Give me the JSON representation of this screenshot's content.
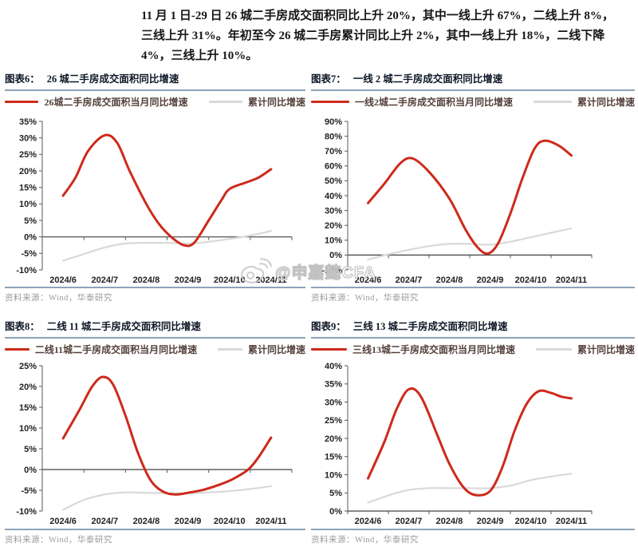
{
  "summary": {
    "lines": [
      "11 月 1 日-29 日 26 城二手房成交面积同比上升 20%，其中一线上升 67%，二线上升 8%，",
      "三线上升 31%。年初至今 26 城二手房累计同比上升 2%，其中一线上升 18%，二线下降",
      "4%，三线上升 10%。"
    ]
  },
  "watermark": {
    "icon": "weibo-icon",
    "text": "@申嘉懿CFA"
  },
  "colors": {
    "monthly_red": "#cd2a1c",
    "cumulative_gray": "#d9d9d9",
    "rule_blue": "#8ca4ba",
    "axis_gray": "#595959",
    "zero_line": "#404040"
  },
  "chart_data": [
    {
      "type": "line",
      "figure_label": "图表6：",
      "title": "26 城二手房成交面积同比增速",
      "source": "资料来源：Wind，华泰研究",
      "x_labels": [
        "2024/6",
        "2024/7",
        "2024/8",
        "2024/9",
        "2024/10",
        "2024/11"
      ],
      "ylim": [
        -10,
        35
      ],
      "ytick_step": 5,
      "y_tick_labels": [
        "-10%",
        "-5%",
        "0%",
        "5%",
        "10%",
        "15%",
        "20%",
        "25%",
        "30%",
        "35%"
      ],
      "legend_position": "top",
      "grid": false,
      "series": [
        {
          "name": "26城二手房成交面积当月同比增速",
          "color": "#cd2a1c",
          "width": 3,
          "x": [
            6,
            6.3,
            6.6,
            7,
            7.3,
            7.6,
            8,
            8.3,
            8.6,
            8.9,
            9.15,
            9.5,
            9.8,
            10,
            10.4,
            10.7,
            11
          ],
          "y": [
            12.5,
            18,
            26,
            30.8,
            28.5,
            20,
            10,
            4,
            0,
            -2.5,
            -1.8,
            5,
            11,
            14.5,
            16.5,
            18,
            20.5
          ]
        },
        {
          "name": "累计同比增速",
          "color": "#d9d9d9",
          "width": 2.2,
          "x": [
            6,
            6.5,
            7,
            7.5,
            8,
            8.5,
            9,
            9.5,
            10,
            10.5,
            11
          ],
          "y": [
            -7.2,
            -5.2,
            -3.2,
            -2,
            -1.8,
            -1.8,
            -2,
            -1.5,
            -0.6,
            0.4,
            1.8
          ]
        }
      ]
    },
    {
      "type": "line",
      "figure_label": "图表7：",
      "title": "一线 2 城二手房成交面积同比增速",
      "source": "资料来源：Wind，华泰研究",
      "x_labels": [
        "2024/6",
        "2024/7",
        "2024/8",
        "2024/9",
        "2024/10",
        "2024/11"
      ],
      "ylim": [
        -10,
        90
      ],
      "ytick_step": 10,
      "y_tick_labels": [
        "-10%",
        "0%",
        "10%",
        "20%",
        "30%",
        "40%",
        "50%",
        "60%",
        "70%",
        "80%",
        "90%"
      ],
      "legend_position": "top",
      "grid": false,
      "series": [
        {
          "name": "一线2城二手房成交面积当月同比增速",
          "color": "#cd2a1c",
          "width": 3,
          "x": [
            6,
            6.4,
            6.8,
            7.1,
            7.5,
            8,
            8.4,
            8.7,
            8.95,
            9.2,
            9.5,
            9.8,
            10.1,
            10.35,
            10.7,
            11
          ],
          "y": [
            35,
            48,
            62,
            65,
            56,
            38,
            17,
            5,
            1,
            8,
            28,
            52,
            72,
            77,
            73.5,
            67
          ]
        },
        {
          "name": "累计同比增速",
          "color": "#d9d9d9",
          "width": 2.2,
          "x": [
            6,
            6.5,
            7,
            7.5,
            8,
            8.5,
            9,
            9.5,
            10,
            10.5,
            11
          ],
          "y": [
            -3,
            0.5,
            3.5,
            6,
            7.5,
            7.5,
            7,
            9,
            12,
            15,
            18
          ]
        }
      ]
    },
    {
      "type": "line",
      "figure_label": "图表8：",
      "title": "二线 11 城二手房成交面积同比增速",
      "source": "资料来源：Wind，华泰研究",
      "x_labels": [
        "2024/6",
        "2024/7",
        "2024/8",
        "2024/9",
        "2024/10",
        "2024/11"
      ],
      "ylim": [
        -10,
        25
      ],
      "ytick_step": 5,
      "y_tick_labels": [
        "-10%",
        "-5%",
        "0%",
        "5%",
        "10%",
        "15%",
        "20%",
        "25%"
      ],
      "legend_position": "top",
      "grid": false,
      "series": [
        {
          "name": "二线11城二手房成交面积当月同比增速",
          "color": "#cd2a1c",
          "width": 3,
          "x": [
            6,
            6.4,
            6.7,
            6.95,
            7.2,
            7.5,
            7.8,
            8.1,
            8.4,
            8.7,
            9,
            9.4,
            9.8,
            10.1,
            10.45,
            10.7,
            11
          ],
          "y": [
            7.5,
            14.5,
            20,
            22.3,
            20.5,
            13,
            4,
            -2.5,
            -5.3,
            -6,
            -5.6,
            -4.8,
            -3.5,
            -2.2,
            0,
            3,
            7.7
          ]
        },
        {
          "name": "累计同比增速",
          "color": "#d9d9d9",
          "width": 2.2,
          "x": [
            6,
            6.5,
            7,
            7.5,
            8,
            8.5,
            9,
            9.5,
            10,
            10.5,
            11
          ],
          "y": [
            -9.7,
            -7.3,
            -6,
            -5.5,
            -5.6,
            -5.7,
            -5.7,
            -5.5,
            -5.2,
            -4.7,
            -4
          ]
        }
      ]
    },
    {
      "type": "line",
      "figure_label": "图表9：",
      "title": "三线 13 城二手房成交面积同比增速",
      "source": "资料来源：Wind，华泰研究",
      "x_labels": [
        "2024/6",
        "2024/7",
        "2024/8",
        "2024/9",
        "2024/10",
        "2024/11"
      ],
      "ylim": [
        0,
        40
      ],
      "ytick_step": 5,
      "y_tick_labels": [
        "0%",
        "5%",
        "10%",
        "15%",
        "20%",
        "25%",
        "30%",
        "35%",
        "40%"
      ],
      "legend_position": "top",
      "grid": false,
      "series": [
        {
          "name": "三线13城二手房成交面积当月同比增速",
          "color": "#cd2a1c",
          "width": 3,
          "x": [
            6,
            6.4,
            6.7,
            7,
            7.3,
            7.7,
            8,
            8.35,
            8.65,
            9,
            9.3,
            9.6,
            9.9,
            10.2,
            10.5,
            10.75,
            11
          ],
          "y": [
            9,
            19,
            28,
            33.5,
            31.5,
            21,
            13,
            6.5,
            4.4,
            5.5,
            12,
            22,
            29.5,
            33,
            32.5,
            31.5,
            31
          ]
        },
        {
          "name": "累计同比增速",
          "color": "#d9d9d9",
          "width": 2.2,
          "x": [
            6,
            6.5,
            7,
            7.5,
            8,
            8.5,
            9,
            9.5,
            10,
            10.5,
            11
          ],
          "y": [
            2.3,
            4.3,
            5.8,
            6.3,
            6.3,
            6.3,
            6.3,
            7,
            8.5,
            9.5,
            10.3
          ]
        }
      ]
    }
  ]
}
